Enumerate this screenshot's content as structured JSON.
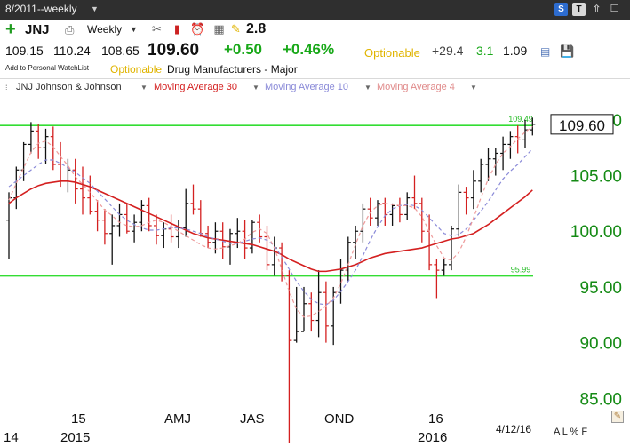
{
  "topbar": {
    "date_combo": "8/2011--weekly",
    "buttons": [
      {
        "icon": "s-icon",
        "label": "S"
      },
      {
        "icon": "t-icon",
        "label": "T"
      }
    ]
  },
  "toolbar": {
    "add_icon": "plus-icon",
    "symbol": "JNJ",
    "period": "Weekly",
    "top_value": "2.8"
  },
  "quote": {
    "open": "109.15",
    "high": "110.24",
    "low": "108.65",
    "last": "109.60",
    "change": "+0.50",
    "change_pct": "+0.46%",
    "optionable": "Optionable",
    "pe": "+29.4",
    "yield": "3.1",
    "beta": "1.09"
  },
  "info": {
    "watchlist": "Add to Personal WatchList",
    "optionable": "Optionable",
    "industry": "Drug Manufacturers - Major"
  },
  "legend": {
    "symbol": "JNJ Johnson & Johnson",
    "ma30": "Moving Average 30",
    "ma10": "Moving Average 10",
    "ma4": "Moving Average 4"
  },
  "footer": {
    "date": "4/12/16",
    "toggle": "A L % F"
  },
  "colors": {
    "up_bar": "#111111",
    "down_bar": "#d42020",
    "ma30": "#d42020",
    "ma10": "#8a8ad8",
    "ma4": "#ee9a9a",
    "lines": "#33dd33",
    "price_axis": "#148a14"
  },
  "chart_data": {
    "type": "bar",
    "subtype": "ohlc",
    "symbol": "JNJ",
    "period": "weekly",
    "last_price": "109.60",
    "ylim": [
      80.8,
      112.3
    ],
    "y_ticks": [
      "110.00",
      "105.00",
      "100.00",
      "95.00",
      "90.00",
      "85.00"
    ],
    "x_ticks": [
      "14",
      "15",
      "2015",
      "AMJ",
      "JAS",
      "OND",
      "16",
      "2016"
    ],
    "horizontal_lines": [
      {
        "label": "109.49",
        "value": 109.49
      },
      {
        "label": "95.99",
        "value": 95.99
      }
    ],
    "series": [
      {
        "name": "Moving Average 30",
        "values": [
          102.5,
          103.0,
          103.4,
          103.8,
          104.1,
          104.3,
          104.4,
          104.5,
          104.5,
          104.4,
          104.2,
          104.0,
          103.7,
          103.4,
          103.1,
          102.8,
          102.5,
          102.2,
          101.9,
          101.6,
          101.3,
          101.0,
          100.7,
          100.4,
          100.1,
          99.8,
          99.6,
          99.4,
          99.3,
          99.2,
          99.1,
          99.0,
          98.9,
          98.8,
          98.6,
          98.4,
          98.2,
          97.9,
          97.5,
          97.2,
          96.9,
          96.6,
          96.4,
          96.4,
          96.5,
          96.6,
          96.8,
          97.0,
          97.3,
          97.6,
          97.8,
          98.0,
          98.1,
          98.2,
          98.3,
          98.4,
          98.5,
          98.7,
          98.9,
          99.1,
          99.3,
          99.4,
          99.6,
          99.8,
          100.2,
          100.6,
          101.1,
          101.6,
          102.1,
          102.6,
          103.1,
          103.7
        ]
      },
      {
        "name": "Moving Average 10",
        "values": [
          104.0,
          104.5,
          105.0,
          105.5,
          106.0,
          106.4,
          106.4,
          106.1,
          105.7,
          105.3,
          104.8,
          104.3,
          103.6,
          102.9,
          102.2,
          101.5,
          101.0,
          100.6,
          100.3,
          100.1,
          100.1,
          100.2,
          100.3,
          100.3,
          100.2,
          100.0,
          99.8,
          99.5,
          99.3,
          99.1,
          98.9,
          98.9,
          99.1,
          99.3,
          99.4,
          99.2,
          98.7,
          97.7,
          96.6,
          95.5,
          94.6,
          93.9,
          93.5,
          93.4,
          93.8,
          94.6,
          95.5,
          96.5,
          97.8,
          99.2,
          100.4,
          101.4,
          102.0,
          102.3,
          102.4,
          102.3,
          101.9,
          101.2,
          100.5,
          99.8,
          99.6,
          99.7,
          100.2,
          101.0,
          101.8,
          102.7,
          103.7,
          104.7,
          105.4,
          106.0,
          106.7,
          107.4
        ]
      },
      {
        "name": "Moving Average 4",
        "values": [
          102.8,
          104.3,
          105.7,
          107.1,
          107.9,
          108.1,
          107.6,
          106.7,
          105.9,
          104.9,
          104.2,
          103.5,
          102.7,
          101.9,
          101.4,
          100.8,
          100.5,
          100.4,
          100.5,
          100.8,
          101.0,
          100.8,
          100.4,
          100.0,
          99.6,
          99.2,
          98.8,
          98.5,
          98.4,
          98.5,
          98.7,
          98.9,
          99.3,
          99.9,
          100.2,
          99.8,
          98.5,
          96.6,
          94.6,
          93.0,
          92.3,
          92.4,
          92.8,
          93.3,
          94.0,
          95.3,
          97.0,
          98.8,
          100.5,
          101.7,
          102.3,
          102.5,
          102.4,
          102.3,
          102.3,
          102.1,
          101.3,
          100.0,
          98.7,
          97.6,
          97.4,
          98.1,
          99.5,
          101.2,
          103.0,
          104.7,
          106.0,
          107.0,
          107.6,
          108.3,
          108.9,
          109.4
        ]
      }
    ],
    "ohlc": [
      [
        101.0,
        103.5,
        97.5,
        103.0
      ],
      [
        103.0,
        105.8,
        102.0,
        105.5
      ],
      [
        105.5,
        108.0,
        104.5,
        107.8
      ],
      [
        107.8,
        109.8,
        107.0,
        109.0
      ],
      [
        109.0,
        109.6,
        106.5,
        107.5
      ],
      [
        107.5,
        109.2,
        106.0,
        108.5
      ],
      [
        108.5,
        109.4,
        105.5,
        106.0
      ],
      [
        106.0,
        108.0,
        104.0,
        104.5
      ],
      [
        104.5,
        106.5,
        103.5,
        105.5
      ],
      [
        105.5,
        106.5,
        102.5,
        103.8
      ],
      [
        103.8,
        105.8,
        101.5,
        103.0
      ],
      [
        103.0,
        105.0,
        101.5,
        101.8
      ],
      [
        101.8,
        102.8,
        100.0,
        101.0
      ],
      [
        101.0,
        102.0,
        98.8,
        99.8
      ],
      [
        99.8,
        101.5,
        97.0,
        100.5
      ],
      [
        100.5,
        102.5,
        99.5,
        101.5
      ],
      [
        101.5,
        102.5,
        99.8,
        100.0
      ],
      [
        100.0,
        101.5,
        99.0,
        100.8
      ],
      [
        100.8,
        102.8,
        100.0,
        102.3
      ],
      [
        102.3,
        103.0,
        100.0,
        100.5
      ],
      [
        100.5,
        101.5,
        98.8,
        99.6
      ],
      [
        99.6,
        100.8,
        98.5,
        100.2
      ],
      [
        100.2,
        101.5,
        99.0,
        99.5
      ],
      [
        99.5,
        101.0,
        98.5,
        100.3
      ],
      [
        100.3,
        103.8,
        99.5,
        102.5
      ],
      [
        102.5,
        104.2,
        101.5,
        102.0
      ],
      [
        102.0,
        102.8,
        99.5,
        99.8
      ],
      [
        99.8,
        100.5,
        98.5,
        99.0
      ],
      [
        99.0,
        100.8,
        98.0,
        100.0
      ],
      [
        100.0,
        100.8,
        97.5,
        98.6
      ],
      [
        98.6,
        100.2,
        97.0,
        99.8
      ],
      [
        99.8,
        101.2,
        98.5,
        100.0
      ],
      [
        100.0,
        101.0,
        97.5,
        98.5
      ],
      [
        98.5,
        101.0,
        98.0,
        100.8
      ],
      [
        100.8,
        101.5,
        99.0,
        99.5
      ],
      [
        99.5,
        100.5,
        96.5,
        97.0
      ],
      [
        97.0,
        99.5,
        96.0,
        98.5
      ],
      [
        98.5,
        99.0,
        95.5,
        96.0
      ],
      [
        96.0,
        96.5,
        81.0,
        90.2
      ],
      [
        90.2,
        95.0,
        90.0,
        91.0
      ],
      [
        91.0,
        95.0,
        91.0,
        93.5
      ],
      [
        93.5,
        94.5,
        91.0,
        92.0
      ],
      [
        92.0,
        96.5,
        90.5,
        94.5
      ],
      [
        94.5,
        95.5,
        90.0,
        91.5
      ],
      [
        91.5,
        95.0,
        89.8,
        94.5
      ],
      [
        94.5,
        97.5,
        93.5,
        96.5
      ],
      [
        96.5,
        99.5,
        95.5,
        99.0
      ],
      [
        99.0,
        100.5,
        97.5,
        100.0
      ],
      [
        100.0,
        102.5,
        99.0,
        102.0
      ],
      [
        102.0,
        103.0,
        100.5,
        101.2
      ],
      [
        101.2,
        102.8,
        100.5,
        102.5
      ],
      [
        102.5,
        103.0,
        100.5,
        101.5
      ],
      [
        101.5,
        102.5,
        100.5,
        102.3
      ],
      [
        102.3,
        103.0,
        100.8,
        101.5
      ],
      [
        101.5,
        103.5,
        101.0,
        103.0
      ],
      [
        103.0,
        105.0,
        102.0,
        102.5
      ],
      [
        102.5,
        103.0,
        99.0,
        100.0
      ],
      [
        100.0,
        101.5,
        96.5,
        97.0
      ],
      [
        97.0,
        97.5,
        94.0,
        96.5
      ],
      [
        96.5,
        97.5,
        96.0,
        97.0
      ],
      [
        97.0,
        100.5,
        96.5,
        100.2
      ],
      [
        100.2,
        104.2,
        99.5,
        103.5
      ],
      [
        103.5,
        104.0,
        101.5,
        103.0
      ],
      [
        103.0,
        105.5,
        102.0,
        104.5
      ],
      [
        104.5,
        106.5,
        103.5,
        106.0
      ],
      [
        106.0,
        107.5,
        104.5,
        106.5
      ],
      [
        106.5,
        107.5,
        105.0,
        107.0
      ],
      [
        107.0,
        108.5,
        105.5,
        107.8
      ],
      [
        107.8,
        109.0,
        106.5,
        108.5
      ],
      [
        108.5,
        109.5,
        107.0,
        108.2
      ],
      [
        108.2,
        110.0,
        107.5,
        109.1
      ],
      [
        109.1,
        110.2,
        108.6,
        109.6
      ]
    ]
  }
}
